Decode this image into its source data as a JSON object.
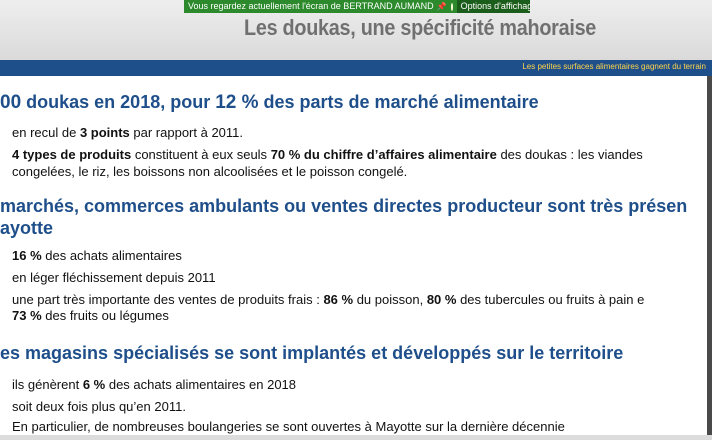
{
  "banner": {
    "message": "Vous regardez actuellement l'écran de BERTRAND AUMAND",
    "options_label": "Options d'affichage"
  },
  "slide": {
    "title": "Les doukas, une spécificité mahoraise",
    "subtitle": "Les petites surfaces alimentaires gagnent du terrain"
  },
  "sections": [
    {
      "heading": {
        "p1": "00",
        "p2": " doukas en 2018, pour ",
        "p3": "12 %",
        "p4": " des parts de marché alimentaire"
      },
      "bullets": {
        "b1": {
          "t1": "en recul de ",
          "t2": "3 points",
          "t3": " par rapport à 2011."
        },
        "b2": {
          "t1": "4 types de produits",
          "t2": " constituent à eux seuls ",
          "t3": "70 % du chiffre d’affaires alimentaire",
          "t4": " des doukas : les viandes",
          "line2": "congelées, le riz, les boissons non alcoolisées et le poisson congelé."
        }
      }
    },
    {
      "heading": {
        "line1": "marchés, commerces ambulants ou ventes directes producteur sont très présen",
        "line2": "ayotte"
      },
      "bullets": {
        "b1": {
          "t1": "16 %",
          "t2": " des achats alimentaires"
        },
        "b2": {
          "t1": "en léger fléchissement depuis 2011"
        },
        "b3": {
          "t1": "une part très importante des ventes de produits frais : ",
          "t2": "86 %",
          "t3": " du poisson, ",
          "t4": "80 %",
          "t5": " des tubercules ou fruits à pain e",
          "l2a": "73 %",
          "l2b": " des fruits ou légumes"
        }
      }
    },
    {
      "heading": {
        "line1": "es magasins spécialisés se sont implantés et développés sur le territoire"
      },
      "bullets": {
        "b1": {
          "t1": "ils génèrent ",
          "t2": "6 %",
          "t3": " des achats alimentaires en 2018"
        },
        "b2": {
          "t1": "soit deux fois plus qu’en 2011."
        },
        "b3": {
          "t1": "En particulier, de nombreuses boulangeries se sont ouvertes à Mayotte sur la dernière décennie"
        }
      }
    }
  ],
  "colors": {
    "heading": "#1f4f8b",
    "banner": "#2c8a2c",
    "subtitle": "#ffd54a"
  }
}
